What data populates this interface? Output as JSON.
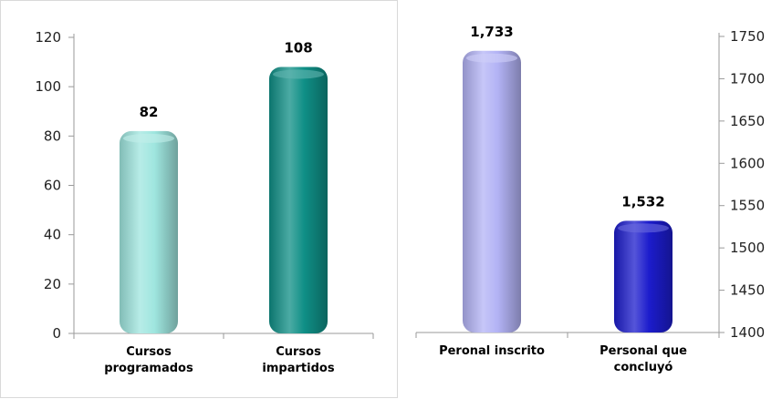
{
  "chart_data": [
    {
      "type": "bar",
      "categories": [
        "Cursos|programados",
        "Cursos|impartidos"
      ],
      "values": [
        82,
        108
      ],
      "data_labels": [
        "82",
        "108"
      ],
      "colors": [
        "#9fe6df",
        "#0f8f86"
      ],
      "ylim": [
        0,
        120
      ],
      "yticks": [
        0,
        20,
        40,
        60,
        80,
        100,
        120
      ],
      "axis_side": "left",
      "grid": false
    },
    {
      "type": "bar",
      "categories": [
        "Peronal inscrito",
        "Personal que|concluyó"
      ],
      "values": [
        1733,
        1532
      ],
      "data_labels": [
        "1,733",
        "1,532"
      ],
      "colors": [
        "#b3b3f5",
        "#1c1ccc"
      ],
      "ylim": [
        1400,
        1750
      ],
      "yticks": [
        1400,
        1450,
        1500,
        1550,
        1600,
        1650,
        1700,
        1750
      ],
      "axis_side": "right",
      "grid": false
    }
  ]
}
